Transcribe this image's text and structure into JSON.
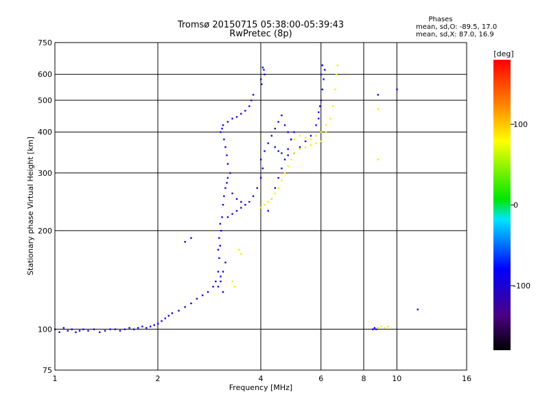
{
  "chart_data": {
    "type": "scatter",
    "title": "Tromsø 20150715 05:38:00-05:39:43",
    "subtitle": "RwPretec (8p)",
    "xlabel": "Frequency [MHz]",
    "ylabel": "Stationary phase Virtual Height [km]",
    "x_scale": "log",
    "y_scale": "log",
    "xlim": [
      1,
      16
    ],
    "ylim": [
      75,
      750
    ],
    "x_ticks": [
      1,
      2,
      4,
      6,
      8,
      10,
      16
    ],
    "x_tick_labels": [
      "1",
      "2",
      "4",
      "6",
      "8",
      "10",
      "16"
    ],
    "y_ticks": [
      75,
      100,
      200,
      300,
      400,
      500,
      600,
      750
    ],
    "y_tick_labels": [
      "75",
      "100",
      "200",
      "300",
      "400",
      "500",
      "600",
      "750"
    ],
    "grid": true,
    "phase_box": {
      "heading": "Phases",
      "line1": "mean, sd,O: -89.5, 17.0",
      "line2": "mean, sd,X:  87.0, 16.9"
    },
    "colorbar": {
      "label": "[deg]",
      "range": [
        -180,
        180
      ],
      "ticks": [
        100,
        0,
        -100
      ],
      "tick_labels": [
        "100",
        "0",
        "-100"
      ]
    },
    "series": [
      {
        "mode": "O",
        "phase": -90,
        "points": [
          [
            1.0,
            100
          ],
          [
            1.03,
            98
          ],
          [
            1.06,
            101
          ],
          [
            1.09,
            99
          ],
          [
            1.12,
            100
          ],
          [
            1.15,
            98
          ],
          [
            1.18,
            99
          ],
          [
            1.21,
            100
          ],
          [
            1.25,
            99
          ],
          [
            1.3,
            100
          ],
          [
            1.35,
            98
          ],
          [
            1.4,
            99
          ],
          [
            1.45,
            100
          ],
          [
            1.5,
            100
          ],
          [
            1.55,
            99
          ],
          [
            1.6,
            100
          ],
          [
            1.65,
            101
          ],
          [
            1.7,
            100
          ],
          [
            1.75,
            101
          ],
          [
            1.8,
            102
          ],
          [
            1.85,
            101
          ],
          [
            1.9,
            102
          ],
          [
            1.95,
            103
          ],
          [
            2.0,
            104
          ],
          [
            2.05,
            106
          ],
          [
            2.1,
            108
          ],
          [
            2.15,
            110
          ],
          [
            2.2,
            112
          ],
          [
            2.3,
            114
          ],
          [
            2.4,
            117
          ],
          [
            2.5,
            120
          ],
          [
            2.6,
            124
          ],
          [
            2.7,
            127
          ],
          [
            2.8,
            130
          ],
          [
            2.9,
            135
          ],
          [
            2.95,
            140
          ],
          [
            3.0,
            150
          ],
          [
            3.02,
            165
          ],
          [
            3.04,
            180
          ],
          [
            3.06,
            200
          ],
          [
            3.08,
            220
          ],
          [
            3.1,
            240
          ],
          [
            3.12,
            255
          ],
          [
            3.15,
            270
          ],
          [
            3.18,
            280
          ],
          [
            3.2,
            290
          ],
          [
            3.0,
            135
          ],
          [
            3.05,
            140
          ],
          [
            3.1,
            150
          ],
          [
            3.1,
            130
          ],
          [
            3.15,
            160
          ],
          [
            3.05,
            145
          ],
          [
            3.0,
            175
          ],
          [
            3.02,
            190
          ],
          [
            3.04,
            210
          ],
          [
            3.2,
            220
          ],
          [
            3.3,
            225
          ],
          [
            3.4,
            230
          ],
          [
            3.5,
            235
          ],
          [
            3.6,
            240
          ],
          [
            3.7,
            245
          ],
          [
            3.8,
            255
          ],
          [
            3.9,
            270
          ],
          [
            4.0,
            290
          ],
          [
            4.05,
            310
          ],
          [
            3.1,
            420
          ],
          [
            3.2,
            430
          ],
          [
            3.3,
            440
          ],
          [
            3.4,
            445
          ],
          [
            3.5,
            455
          ],
          [
            3.6,
            465
          ],
          [
            3.7,
            480
          ],
          [
            3.75,
            500
          ],
          [
            3.8,
            520
          ],
          [
            3.05,
            400
          ],
          [
            3.08,
            410
          ],
          [
            3.12,
            380
          ],
          [
            3.15,
            360
          ],
          [
            3.18,
            340
          ],
          [
            3.2,
            320
          ],
          [
            3.25,
            300
          ],
          [
            3.3,
            260
          ],
          [
            3.4,
            250
          ],
          [
            3.5,
            245
          ],
          [
            4.0,
            330
          ],
          [
            4.1,
            350
          ],
          [
            4.2,
            370
          ],
          [
            4.3,
            390
          ],
          [
            4.4,
            410
          ],
          [
            4.5,
            430
          ],
          [
            4.6,
            450
          ],
          [
            4.7,
            420
          ],
          [
            4.8,
            400
          ],
          [
            4.9,
            380
          ],
          [
            4.1,
            600
          ],
          [
            4.05,
            630
          ],
          [
            4.08,
            620
          ],
          [
            4.0,
            580
          ],
          [
            4.02,
            560
          ],
          [
            4.4,
            360
          ],
          [
            4.5,
            350
          ],
          [
            4.6,
            345
          ],
          [
            4.8,
            340
          ],
          [
            5.0,
            345
          ],
          [
            5.2,
            360
          ],
          [
            5.4,
            375
          ],
          [
            5.6,
            390
          ],
          [
            5.8,
            420
          ],
          [
            5.9,
            460
          ],
          [
            6.0,
            500
          ],
          [
            6.05,
            540
          ],
          [
            6.1,
            580
          ],
          [
            6.15,
            620
          ],
          [
            5.95,
            480
          ],
          [
            5.9,
            440
          ],
          [
            6.0,
            600
          ],
          [
            6.05,
            640
          ],
          [
            4.2,
            230
          ],
          [
            4.3,
            250
          ],
          [
            4.4,
            270
          ],
          [
            4.5,
            290
          ],
          [
            4.6,
            310
          ],
          [
            4.7,
            330
          ],
          [
            4.8,
            355
          ],
          [
            4.9,
            380
          ],
          [
            5.0,
            400
          ],
          [
            2.5,
            190
          ],
          [
            2.4,
            185
          ],
          [
            8.5,
            100
          ],
          [
            8.6,
            101
          ],
          [
            8.7,
            100
          ],
          [
            11.5,
            115
          ],
          [
            10.0,
            540
          ],
          [
            8.8,
            520
          ]
        ]
      },
      {
        "mode": "X",
        "phase": 87,
        "points": [
          [
            4.0,
            235
          ],
          [
            4.1,
            240
          ],
          [
            4.2,
            245
          ],
          [
            4.3,
            250
          ],
          [
            4.4,
            260
          ],
          [
            4.5,
            270
          ],
          [
            4.6,
            285
          ],
          [
            4.7,
            300
          ],
          [
            4.8,
            315
          ],
          [
            4.9,
            330
          ],
          [
            5.0,
            345
          ],
          [
            5.2,
            355
          ],
          [
            5.4,
            360
          ],
          [
            5.6,
            365
          ],
          [
            5.8,
            370
          ],
          [
            6.0,
            375
          ],
          [
            6.2,
            400
          ],
          [
            6.4,
            440
          ],
          [
            6.5,
            480
          ],
          [
            6.6,
            540
          ],
          [
            6.65,
            600
          ],
          [
            6.7,
            640
          ],
          [
            5.0,
            380
          ],
          [
            5.2,
            390
          ],
          [
            5.4,
            385
          ],
          [
            5.6,
            380
          ],
          [
            5.8,
            390
          ],
          [
            6.0,
            400
          ],
          [
            6.2,
            420
          ],
          [
            3.5,
            170
          ],
          [
            3.45,
            175
          ],
          [
            3.3,
            140
          ],
          [
            3.35,
            135
          ],
          [
            8.8,
            101
          ],
          [
            9.0,
            102
          ],
          [
            9.2,
            101
          ],
          [
            9.4,
            102
          ],
          [
            8.8,
            470
          ],
          [
            8.8,
            330
          ]
        ]
      }
    ]
  }
}
